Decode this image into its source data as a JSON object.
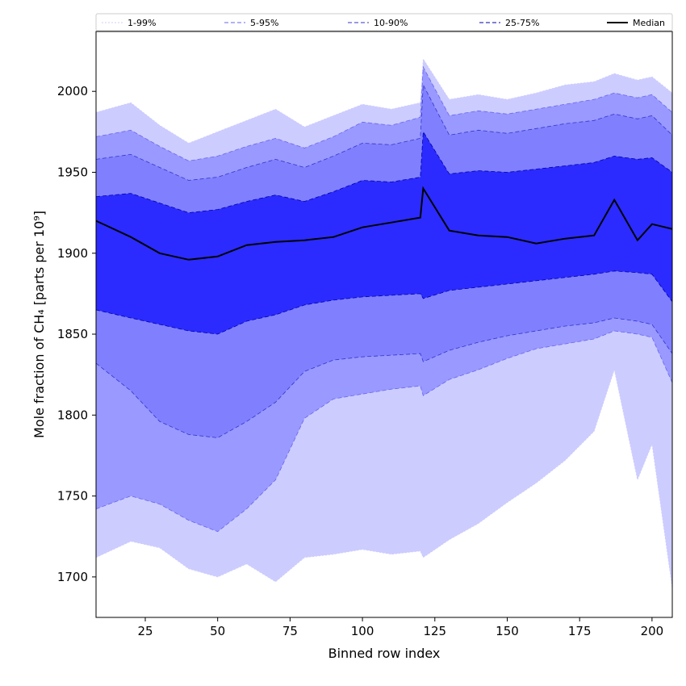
{
  "chart_data": {
    "type": "area",
    "xlabel": "Binned row index",
    "ylabel": "Mole fraction of CH₄ [parts per 10⁹]",
    "xlim": [
      8,
      207
    ],
    "ylim": [
      1675,
      2037
    ],
    "xticks": [
      25,
      50,
      75,
      100,
      125,
      150,
      175,
      200
    ],
    "yticks": [
      1700,
      1750,
      1800,
      1850,
      1900,
      1950,
      2000
    ],
    "grid": false,
    "legend_position": "top",
    "x": [
      8,
      20,
      30,
      40,
      50,
      60,
      70,
      80,
      90,
      100,
      110,
      120,
      121,
      130,
      140,
      150,
      160,
      170,
      180,
      187,
      195,
      200,
      207
    ],
    "bands": [
      {
        "name": "1-99%",
        "fill": "#ccccff",
        "line_color": "#ccccff",
        "lower": [
          1712,
          1722,
          1718,
          1705,
          1700,
          1708,
          1697,
          1712,
          1714,
          1717,
          1714,
          1716,
          1712,
          1723,
          1733,
          1746,
          1758,
          1772,
          1790,
          1828,
          1760,
          1782,
          1693
        ],
        "upper": [
          1987,
          1993,
          1979,
          1968,
          1975,
          1982,
          1989,
          1978,
          1985,
          1992,
          1989,
          1993,
          2020,
          1995,
          1998,
          1995,
          1999,
          2004,
          2006,
          2011,
          2007,
          2009,
          1999
        ]
      },
      {
        "name": "5-95%",
        "fill": "#9999ff",
        "line_color": "#6666ee",
        "lower": [
          1742,
          1750,
          1745,
          1735,
          1728,
          1742,
          1760,
          1798,
          1810,
          1813,
          1816,
          1818,
          1812,
          1822,
          1828,
          1835,
          1841,
          1844,
          1847,
          1852,
          1850,
          1848,
          1820
        ],
        "upper": [
          1972,
          1976,
          1966,
          1957,
          1960,
          1966,
          1971,
          1965,
          1972,
          1981,
          1979,
          1984,
          2015,
          1985,
          1988,
          1986,
          1989,
          1992,
          1995,
          1999,
          1996,
          1998,
          1987
        ]
      },
      {
        "name": "10-90%",
        "fill": "#8080ff",
        "line_color": "#3333cc",
        "lower": [
          1832,
          1815,
          1796,
          1788,
          1786,
          1796,
          1808,
          1827,
          1834,
          1836,
          1837,
          1838,
          1833,
          1840,
          1845,
          1849,
          1852,
          1855,
          1857,
          1860,
          1858,
          1856,
          1838
        ],
        "upper": [
          1958,
          1961,
          1953,
          1945,
          1947,
          1953,
          1958,
          1953,
          1960,
          1968,
          1967,
          1971,
          2004,
          1973,
          1976,
          1974,
          1977,
          1980,
          1982,
          1986,
          1983,
          1985,
          1973
        ]
      },
      {
        "name": "25-75%",
        "fill": "#2b2bff",
        "line_color": "#0000aa",
        "lower": [
          1865,
          1860,
          1856,
          1852,
          1850,
          1858,
          1862,
          1868,
          1871,
          1873,
          1874,
          1875,
          1872,
          1877,
          1879,
          1881,
          1883,
          1885,
          1887,
          1889,
          1888,
          1887,
          1870
        ],
        "upper": [
          1935,
          1937,
          1931,
          1925,
          1927,
          1932,
          1936,
          1932,
          1938,
          1945,
          1944,
          1947,
          1975,
          1949,
          1951,
          1950,
          1952,
          1954,
          1956,
          1960,
          1958,
          1959,
          1950
        ]
      }
    ],
    "median": {
      "name": "Median",
      "color": "#000000",
      "values": [
        1920,
        1910,
        1900,
        1896,
        1898,
        1905,
        1907,
        1908,
        1910,
        1916,
        1919,
        1922,
        1940,
        1914,
        1911,
        1910,
        1906,
        1909,
        1911,
        1933,
        1908,
        1918,
        1915
      ]
    }
  }
}
